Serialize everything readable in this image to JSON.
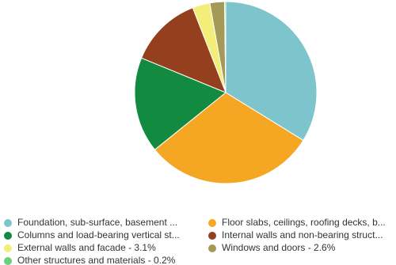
{
  "chart_data": {
    "type": "pie",
    "categories": [
      "Foundation, sub-surface, basement ...",
      "Floor slabs, ceilings, roofing decks, b...",
      "Columns and load-bearing vertical st...",
      "Internal walls and non-bearing struct...",
      "External walls and facade - 3.1%",
      "Windows and doors - 2.6%",
      "Other structures and materials - 0.2%"
    ],
    "values": [
      33.8,
      30.4,
      17.0,
      12.9,
      3.1,
      2.6,
      0.2
    ],
    "colors": [
      "#7ec4cc",
      "#f5a623",
      "#128a3f",
      "#94401e",
      "#f3ee79",
      "#a39a58",
      "#6ccf7a"
    ]
  }
}
